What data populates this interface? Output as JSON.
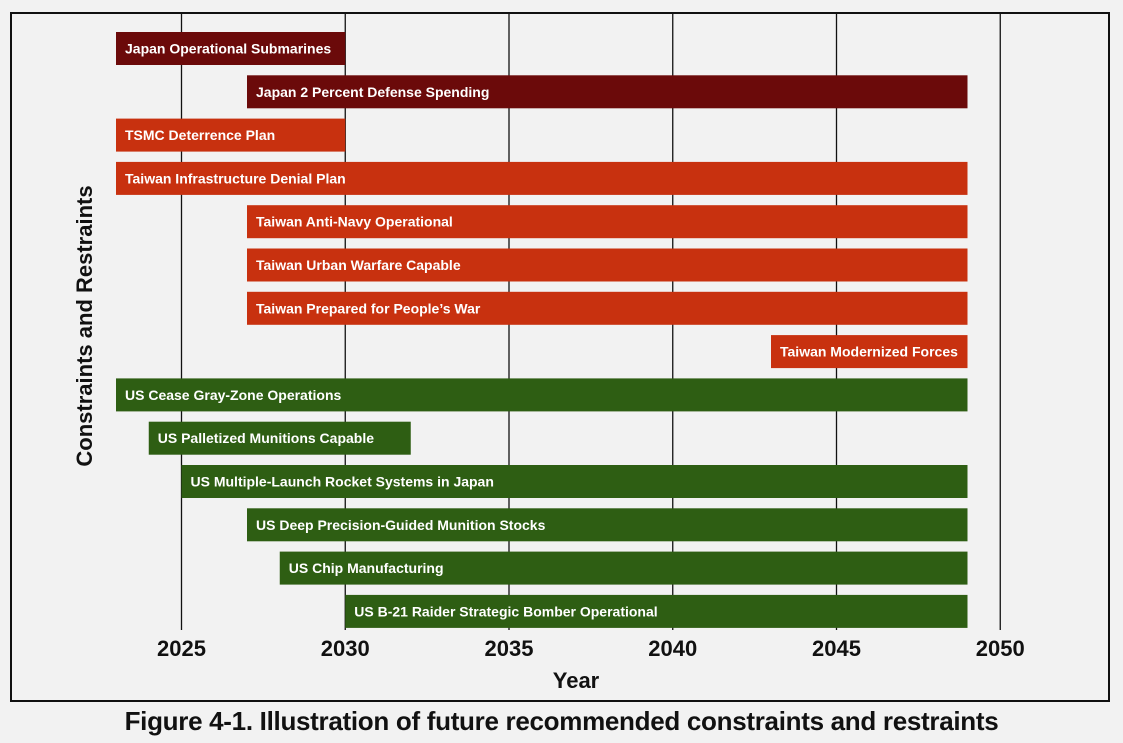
{
  "chart_data": {
    "type": "bar",
    "orientation": "horizontal-gantt",
    "caption": "Figure 4-1. Illustration of future recommended constraints and restraints",
    "xlabel": "Year",
    "ylabel": "Constraints and Restraints",
    "xlim": [
      2021.2,
      2052.5
    ],
    "x_ticks": [
      2025,
      2030,
      2035,
      2040,
      2045,
      2050
    ],
    "grid": "vertical",
    "colors": {
      "japan": "#6b0a0a",
      "taiwan": "#c8310f",
      "us": "#2e5e13"
    },
    "series": [
      {
        "name": "Japan Operational Submarines",
        "start": 2023,
        "end": 2030,
        "group": "japan"
      },
      {
        "name": "Japan 2 Percent Defense Spending",
        "start": 2027,
        "end": 2049,
        "group": "japan"
      },
      {
        "name": "TSMC Deterrence Plan",
        "start": 2023,
        "end": 2030,
        "group": "taiwan"
      },
      {
        "name": "Taiwan Infrastructure Denial Plan",
        "start": 2023,
        "end": 2049,
        "group": "taiwan"
      },
      {
        "name": "Taiwan Anti-Navy Operational",
        "start": 2027,
        "end": 2049,
        "group": "taiwan"
      },
      {
        "name": "Taiwan Urban Warfare Capable",
        "start": 2027,
        "end": 2049,
        "group": "taiwan"
      },
      {
        "name": "Taiwan Prepared for People’s War",
        "start": 2027,
        "end": 2049,
        "group": "taiwan"
      },
      {
        "name": "Taiwan Modernized Forces",
        "start": 2043,
        "end": 2049,
        "group": "taiwan"
      },
      {
        "name": "US Cease Gray-Zone Operations",
        "start": 2023,
        "end": 2049,
        "group": "us"
      },
      {
        "name": "US Palletized Munitions Capable",
        "start": 2024,
        "end": 2032,
        "group": "us"
      },
      {
        "name": "US Multiple-Launch Rocket Systems in Japan",
        "start": 2025,
        "end": 2049,
        "group": "us"
      },
      {
        "name": "US Deep Precision-Guided Munition Stocks",
        "start": 2027,
        "end": 2049,
        "group": "us"
      },
      {
        "name": "US Chip Manufacturing",
        "start": 2028,
        "end": 2049,
        "group": "us"
      },
      {
        "name": "US B-21 Raider Strategic Bomber Operational",
        "start": 2030,
        "end": 2049,
        "group": "us"
      }
    ]
  }
}
